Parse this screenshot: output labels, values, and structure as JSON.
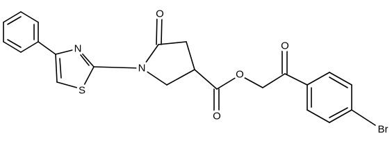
{
  "atoms": [
    "N",
    "S",
    "N",
    "O",
    "O",
    "O",
    "O",
    "Br"
  ]
}
